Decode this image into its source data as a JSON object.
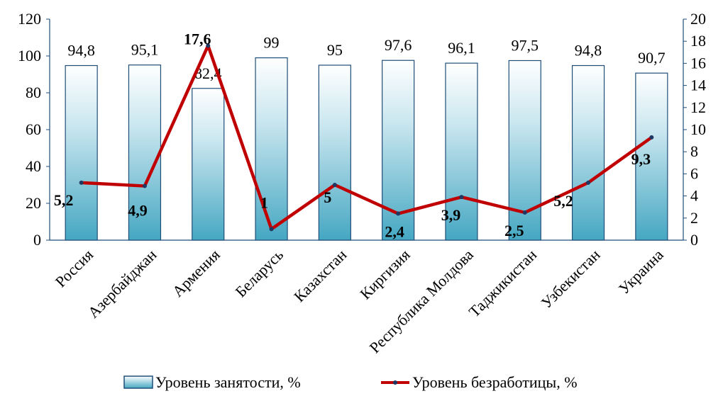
{
  "chart_data": {
    "type": "bar",
    "categories": [
      "Россия",
      "Азербайджан",
      "Армения",
      "Беларусь",
      "Казахстан",
      "Киргизия",
      "Республика Молдова",
      "Таджикистан",
      "Узбекистан",
      "Украина"
    ],
    "series": [
      {
        "name": "Уровень занятости, %",
        "type": "bar",
        "axis": "left",
        "values": [
          94.8,
          95.1,
          82.4,
          99,
          95,
          97.6,
          96.1,
          97.5,
          94.8,
          90.7
        ],
        "labels": [
          "94,8",
          "95,1",
          "82,4",
          "99",
          "95",
          "97,6",
          "96,1",
          "97,5",
          "94,8",
          "90,7"
        ],
        "color": "#4bacc6"
      },
      {
        "name": "Уровень безработицы, %",
        "type": "line",
        "axis": "right",
        "values": [
          5.2,
          4.9,
          17.6,
          1,
          5,
          2.4,
          3.9,
          2.5,
          5.2,
          9.3
        ],
        "labels": [
          "5,2",
          "4,9",
          "17,6",
          "1",
          "5",
          "2,4",
          "3,9",
          "2,5",
          "5,2",
          "9,3"
        ],
        "color": "#c00000",
        "marker_color": "#1f3864"
      }
    ],
    "y_left": {
      "min": 0,
      "max": 120,
      "ticks": [
        "0",
        "20",
        "40",
        "60",
        "80",
        "100",
        "120"
      ]
    },
    "y_right": {
      "min": 0,
      "max": 20,
      "ticks": [
        "0",
        "2",
        "4",
        "6",
        "8",
        "10",
        "12",
        "14",
        "16",
        "18",
        "20"
      ]
    },
    "title": "",
    "xlabel": "",
    "ylabel": "",
    "grid": false,
    "legend_position": "bottom"
  }
}
